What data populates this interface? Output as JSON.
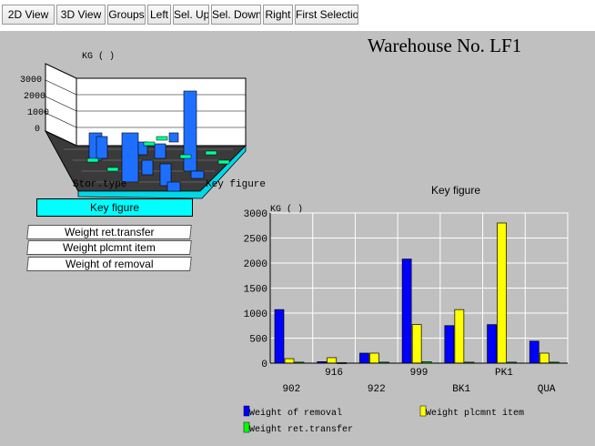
{
  "toolbar": {
    "buttons": [
      "2D View",
      "3D View",
      "Groups",
      "Left",
      "Sel. Up",
      "Sel. Down",
      "Right",
      "First Selection"
    ]
  },
  "window": {
    "title": "Warehouse No. LF1"
  },
  "mini_chart": {
    "ylabel": "KG ( )",
    "yticks": [
      "3000",
      "2000",
      "1000",
      "0"
    ],
    "xlabel": "Stor.type",
    "zlabel": "Key figure"
  },
  "legend_panel": {
    "header": "Key figure",
    "items": [
      "Weight ret.transfer",
      "Weight plcmnt item",
      "Weight of removal"
    ]
  },
  "colors": {
    "removal": "#0000ff",
    "plcmnt": "#ffff00",
    "ret_transfer": "#00ff00",
    "header_bg": "#00ffff"
  },
  "chart_data": {
    "type": "bar",
    "title": "Key figure",
    "ylabel": "KG ( )",
    "ylim": [
      0,
      3000
    ],
    "yticks": [
      0,
      500,
      1000,
      1500,
      2000,
      2500,
      3000
    ],
    "categories": [
      "902",
      "916",
      "922",
      "999",
      "BK1",
      "PK1",
      "QUA"
    ],
    "series": [
      {
        "name": "Weight of removal",
        "color": "#0000ff",
        "values": [
          1070,
          30,
          200,
          2080,
          750,
          770,
          440
        ]
      },
      {
        "name": "Weight plcmnt item",
        "color": "#ffff00",
        "values": [
          90,
          110,
          200,
          770,
          1070,
          2800,
          200
        ]
      },
      {
        "name": "Weight ret.transfer",
        "color": "#00ff00",
        "values": [
          20,
          10,
          20,
          30,
          20,
          20,
          20
        ]
      }
    ],
    "grid": true,
    "legend": "bottom"
  }
}
